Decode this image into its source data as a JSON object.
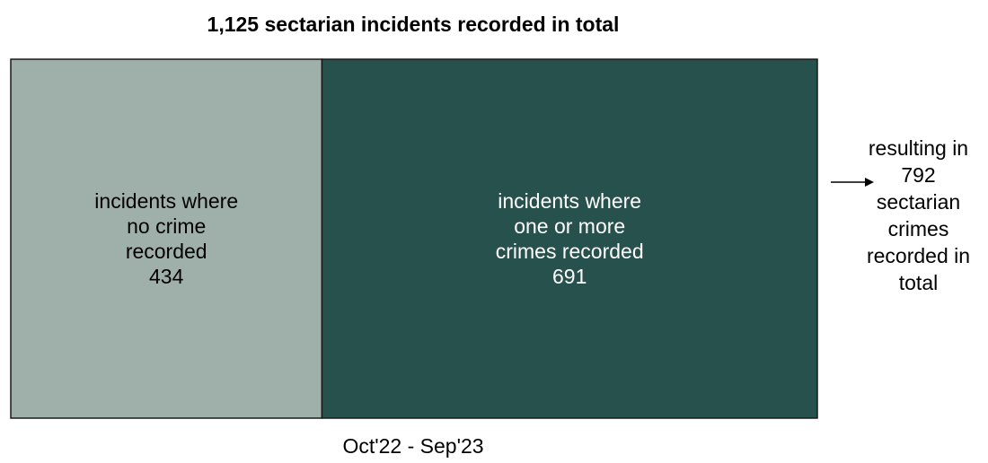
{
  "chart_data": {
    "type": "bar",
    "title": "1,125 sectarian incidents recorded in total",
    "xlabel": "Oct'22 - Sep'23",
    "categories": [
      "incidents where no crime recorded",
      "incidents where one or more crimes recorded"
    ],
    "values": [
      434,
      691
    ],
    "total": 1125,
    "segments": [
      {
        "label_lines": [
          "incidents where",
          "no crime",
          "recorded"
        ],
        "value_text": "434",
        "value": 434,
        "color": "#9fb0ab"
      },
      {
        "label_lines": [
          "incidents where",
          "one or more",
          "crimes recorded"
        ],
        "value_text": "691",
        "value": 691,
        "color": "#27514d"
      }
    ],
    "annotation_lines": [
      "resulting in",
      "792",
      "sectarian",
      "crimes",
      "recorded in",
      "total"
    ],
    "annotation_value": 792
  }
}
